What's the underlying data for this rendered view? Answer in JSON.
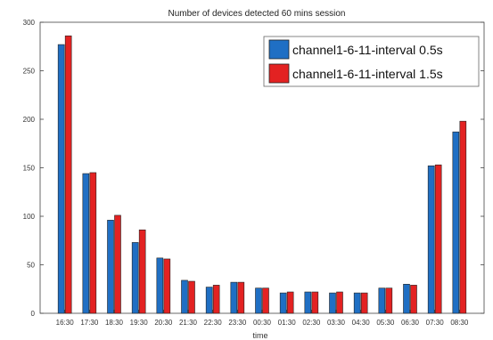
{
  "chart_data": {
    "type": "bar",
    "title": "Number of devices detected 60 mins session",
    "xlabel": "time",
    "ylabel": "",
    "ylim": [
      0,
      300
    ],
    "yticks": [
      0,
      50,
      100,
      150,
      200,
      250,
      300
    ],
    "grid": false,
    "legend_position": "top-right",
    "categories": [
      "16:30",
      "17:30",
      "18:30",
      "19:30",
      "20:30",
      "21:30",
      "22:30",
      "23:30",
      "00:30",
      "01:30",
      "02:30",
      "03:30",
      "04:30",
      "05:30",
      "06:30",
      "07:30",
      "08:30"
    ],
    "series": [
      {
        "name": "channel1-6-11-interval 0.5s",
        "color": "#1f6fc4",
        "values": [
          277,
          144,
          96,
          73,
          57,
          34,
          27,
          32,
          26,
          21,
          22,
          21,
          21,
          26,
          30,
          152,
          187
        ]
      },
      {
        "name": "channel1-6-11-interval 1.5s",
        "color": "#e32222",
        "values": [
          286,
          145,
          101,
          86,
          56,
          33,
          29,
          32,
          26,
          22,
          22,
          22,
          21,
          26,
          29,
          153,
          198
        ]
      }
    ]
  }
}
